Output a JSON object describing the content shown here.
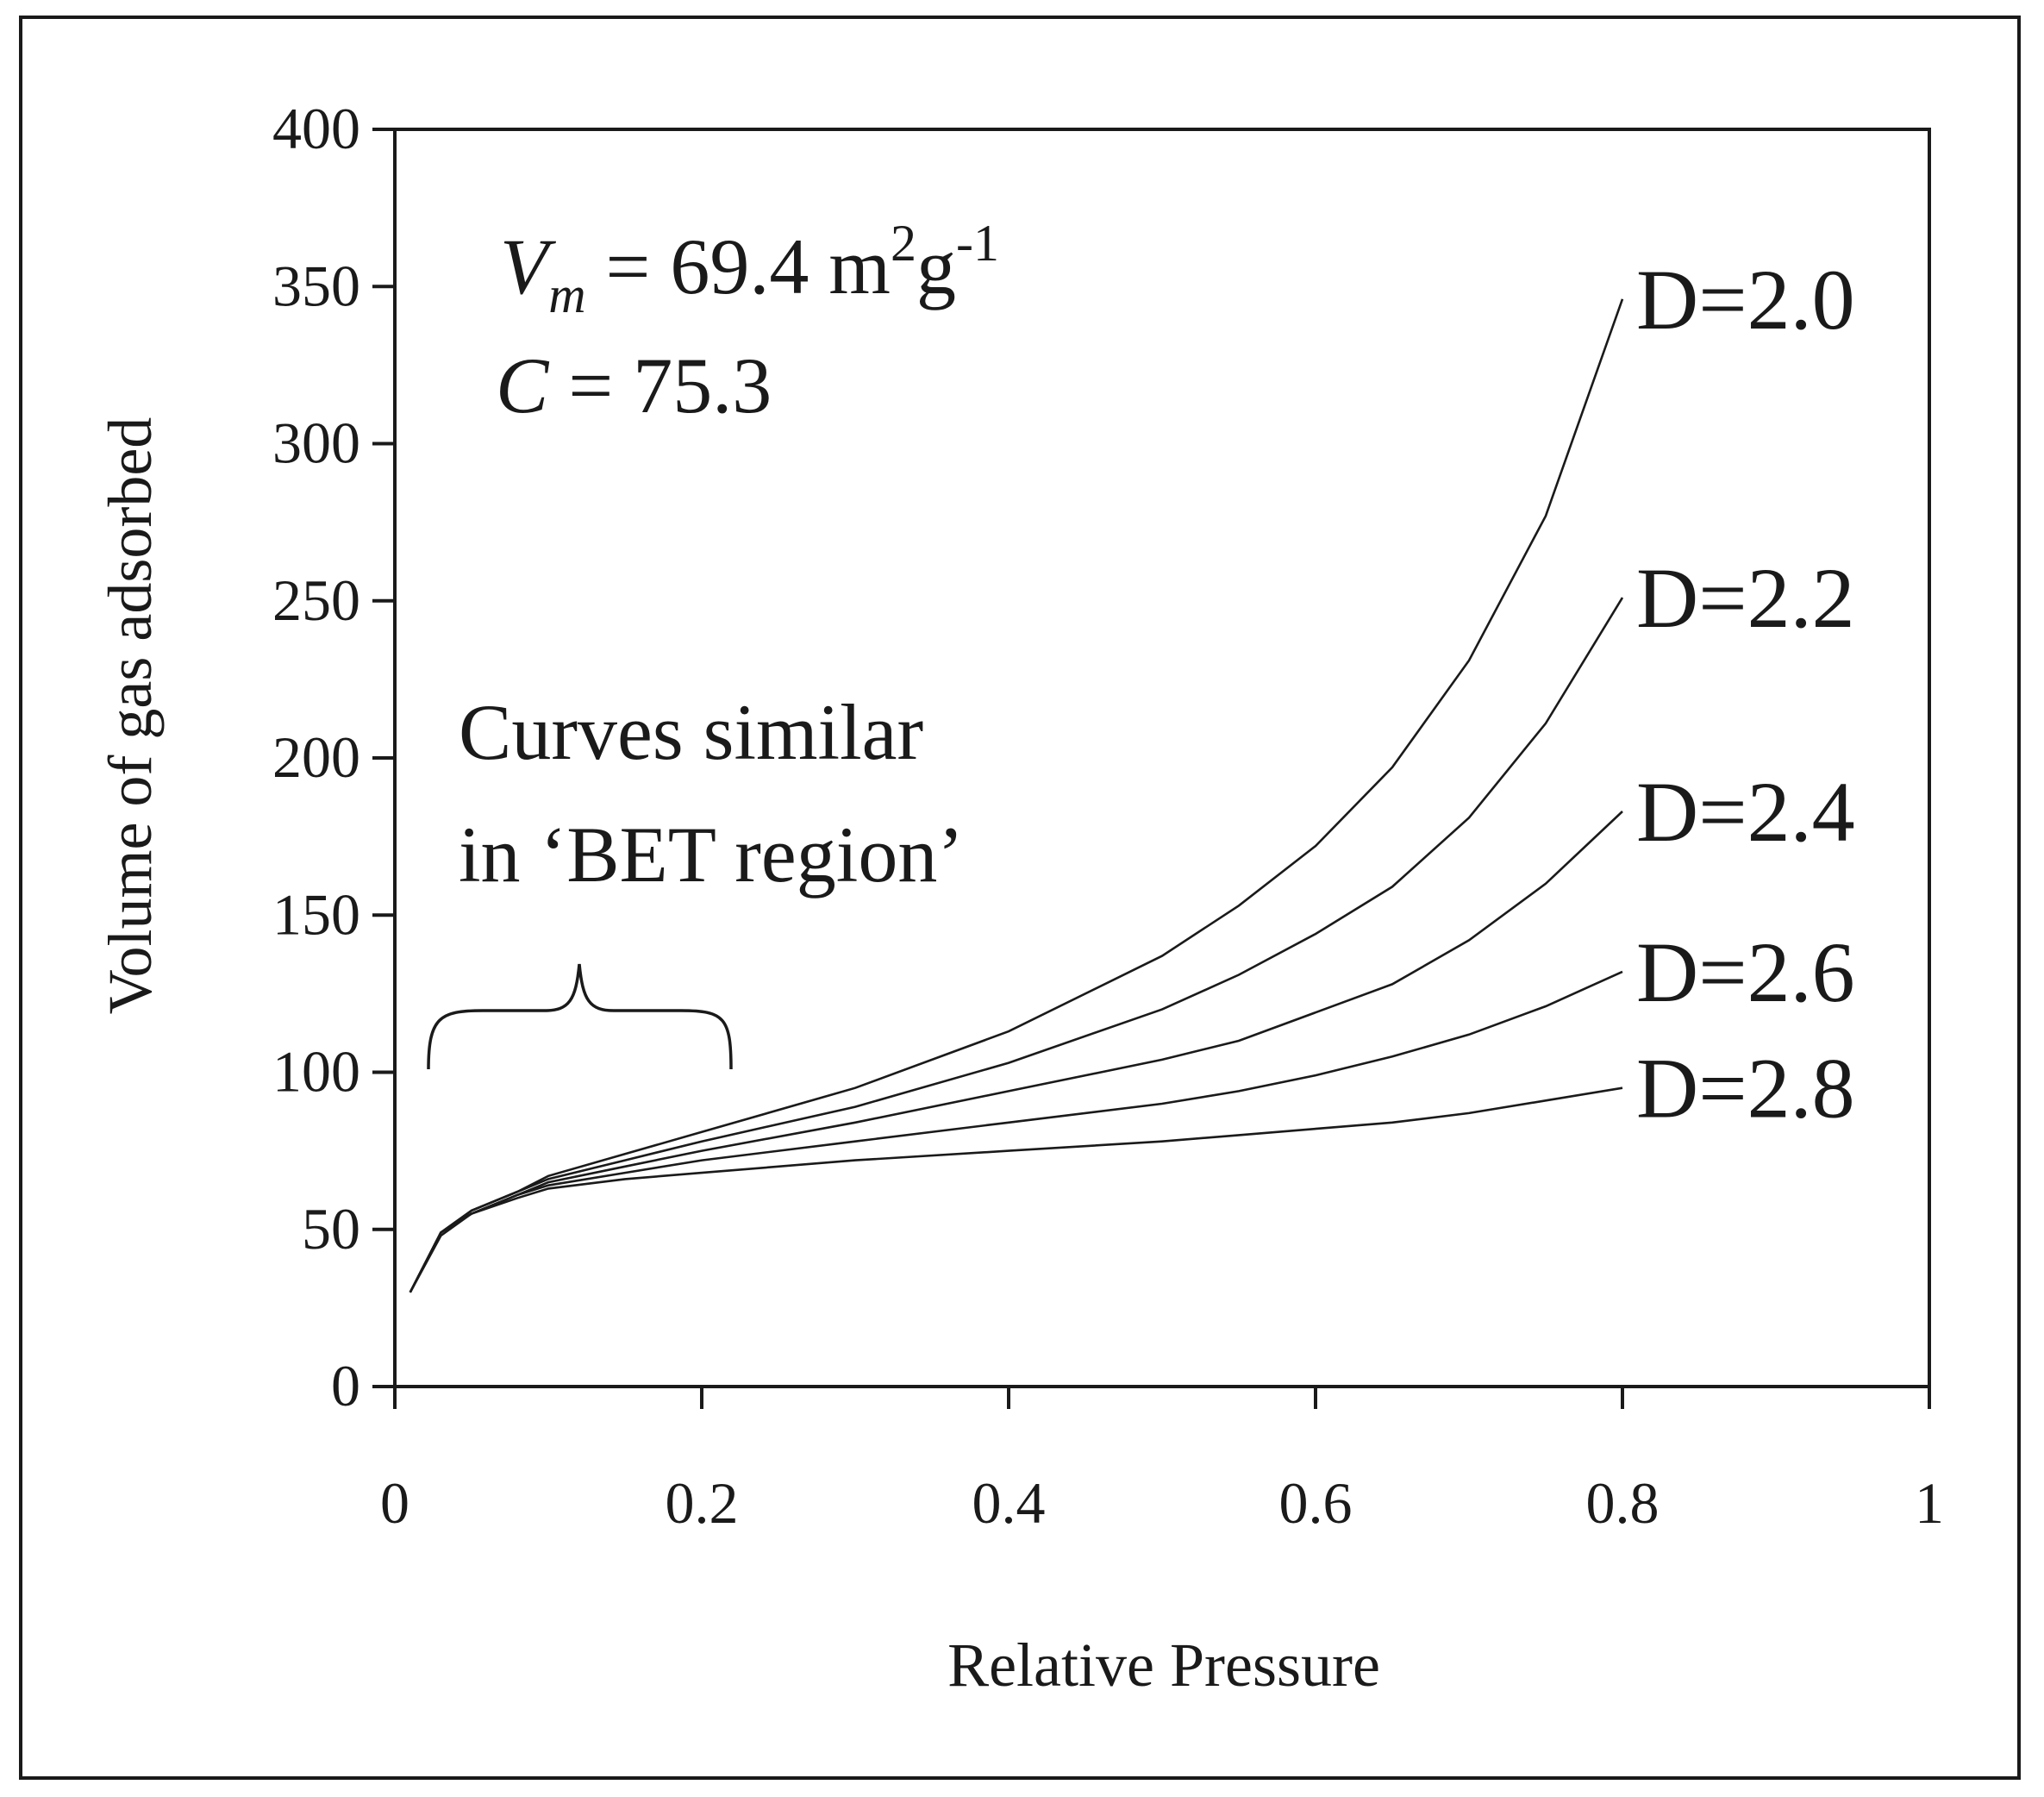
{
  "chart_data": {
    "type": "line",
    "title": "",
    "xlabel": "Relative Pressure",
    "ylabel": "Volume of gas adsorbed",
    "xlim": [
      0,
      1
    ],
    "ylim": [
      0,
      400
    ],
    "xticks": [
      0,
      0.2,
      0.4,
      0.6,
      0.8,
      1
    ],
    "xtick_labels": [
      "0",
      "0.2",
      "0.4",
      "0.6",
      "0.8",
      "1"
    ],
    "yticks": [
      0,
      50,
      100,
      150,
      200,
      250,
      300,
      350,
      400
    ],
    "ytick_labels": [
      "0",
      "50",
      "100",
      "150",
      "200",
      "250",
      "300",
      "350",
      "400"
    ],
    "grid": false,
    "x": [
      0.01,
      0.03,
      0.05,
      0.08,
      0.1,
      0.15,
      0.2,
      0.3,
      0.4,
      0.5,
      0.55,
      0.6,
      0.65,
      0.7,
      0.75,
      0.8
    ],
    "series": [
      {
        "name": "D=2.0",
        "values": [
          30,
          49,
          56,
          62,
          67,
          74,
          81,
          95,
          113,
          137,
          153,
          172,
          197,
          231,
          277,
          346
        ]
      },
      {
        "name": "D=2.2",
        "values": [
          30,
          49,
          56,
          62,
          66,
          72,
          78,
          89,
          103,
          120,
          131,
          144,
          159,
          181,
          211,
          251
        ]
      },
      {
        "name": "D=2.4",
        "values": [
          30,
          49,
          55,
          61,
          65,
          70,
          75,
          84,
          94,
          104,
          110,
          119,
          128,
          142,
          160,
          183
        ]
      },
      {
        "name": "D=2.6",
        "values": [
          30,
          49,
          55,
          61,
          64,
          68,
          72,
          78,
          84,
          90,
          94,
          99,
          105,
          112,
          121,
          132
        ]
      },
      {
        "name": "D=2.8",
        "values": [
          30,
          48,
          55,
          60,
          63,
          66,
          68,
          72,
          75,
          78,
          80,
          82,
          84,
          87,
          91,
          95
        ]
      }
    ],
    "annotations": {
      "vm_symbol": "V",
      "vm_subscript": "m",
      "vm_value": " = 69.4 m",
      "vm_sup1": "2",
      "vm_g": "g",
      "vm_sup2": "-1",
      "c_symbol": "C",
      "c_value": " = 75.3",
      "bet_line1": "Curves similar",
      "bet_line2": "in ‘BET region’"
    }
  }
}
